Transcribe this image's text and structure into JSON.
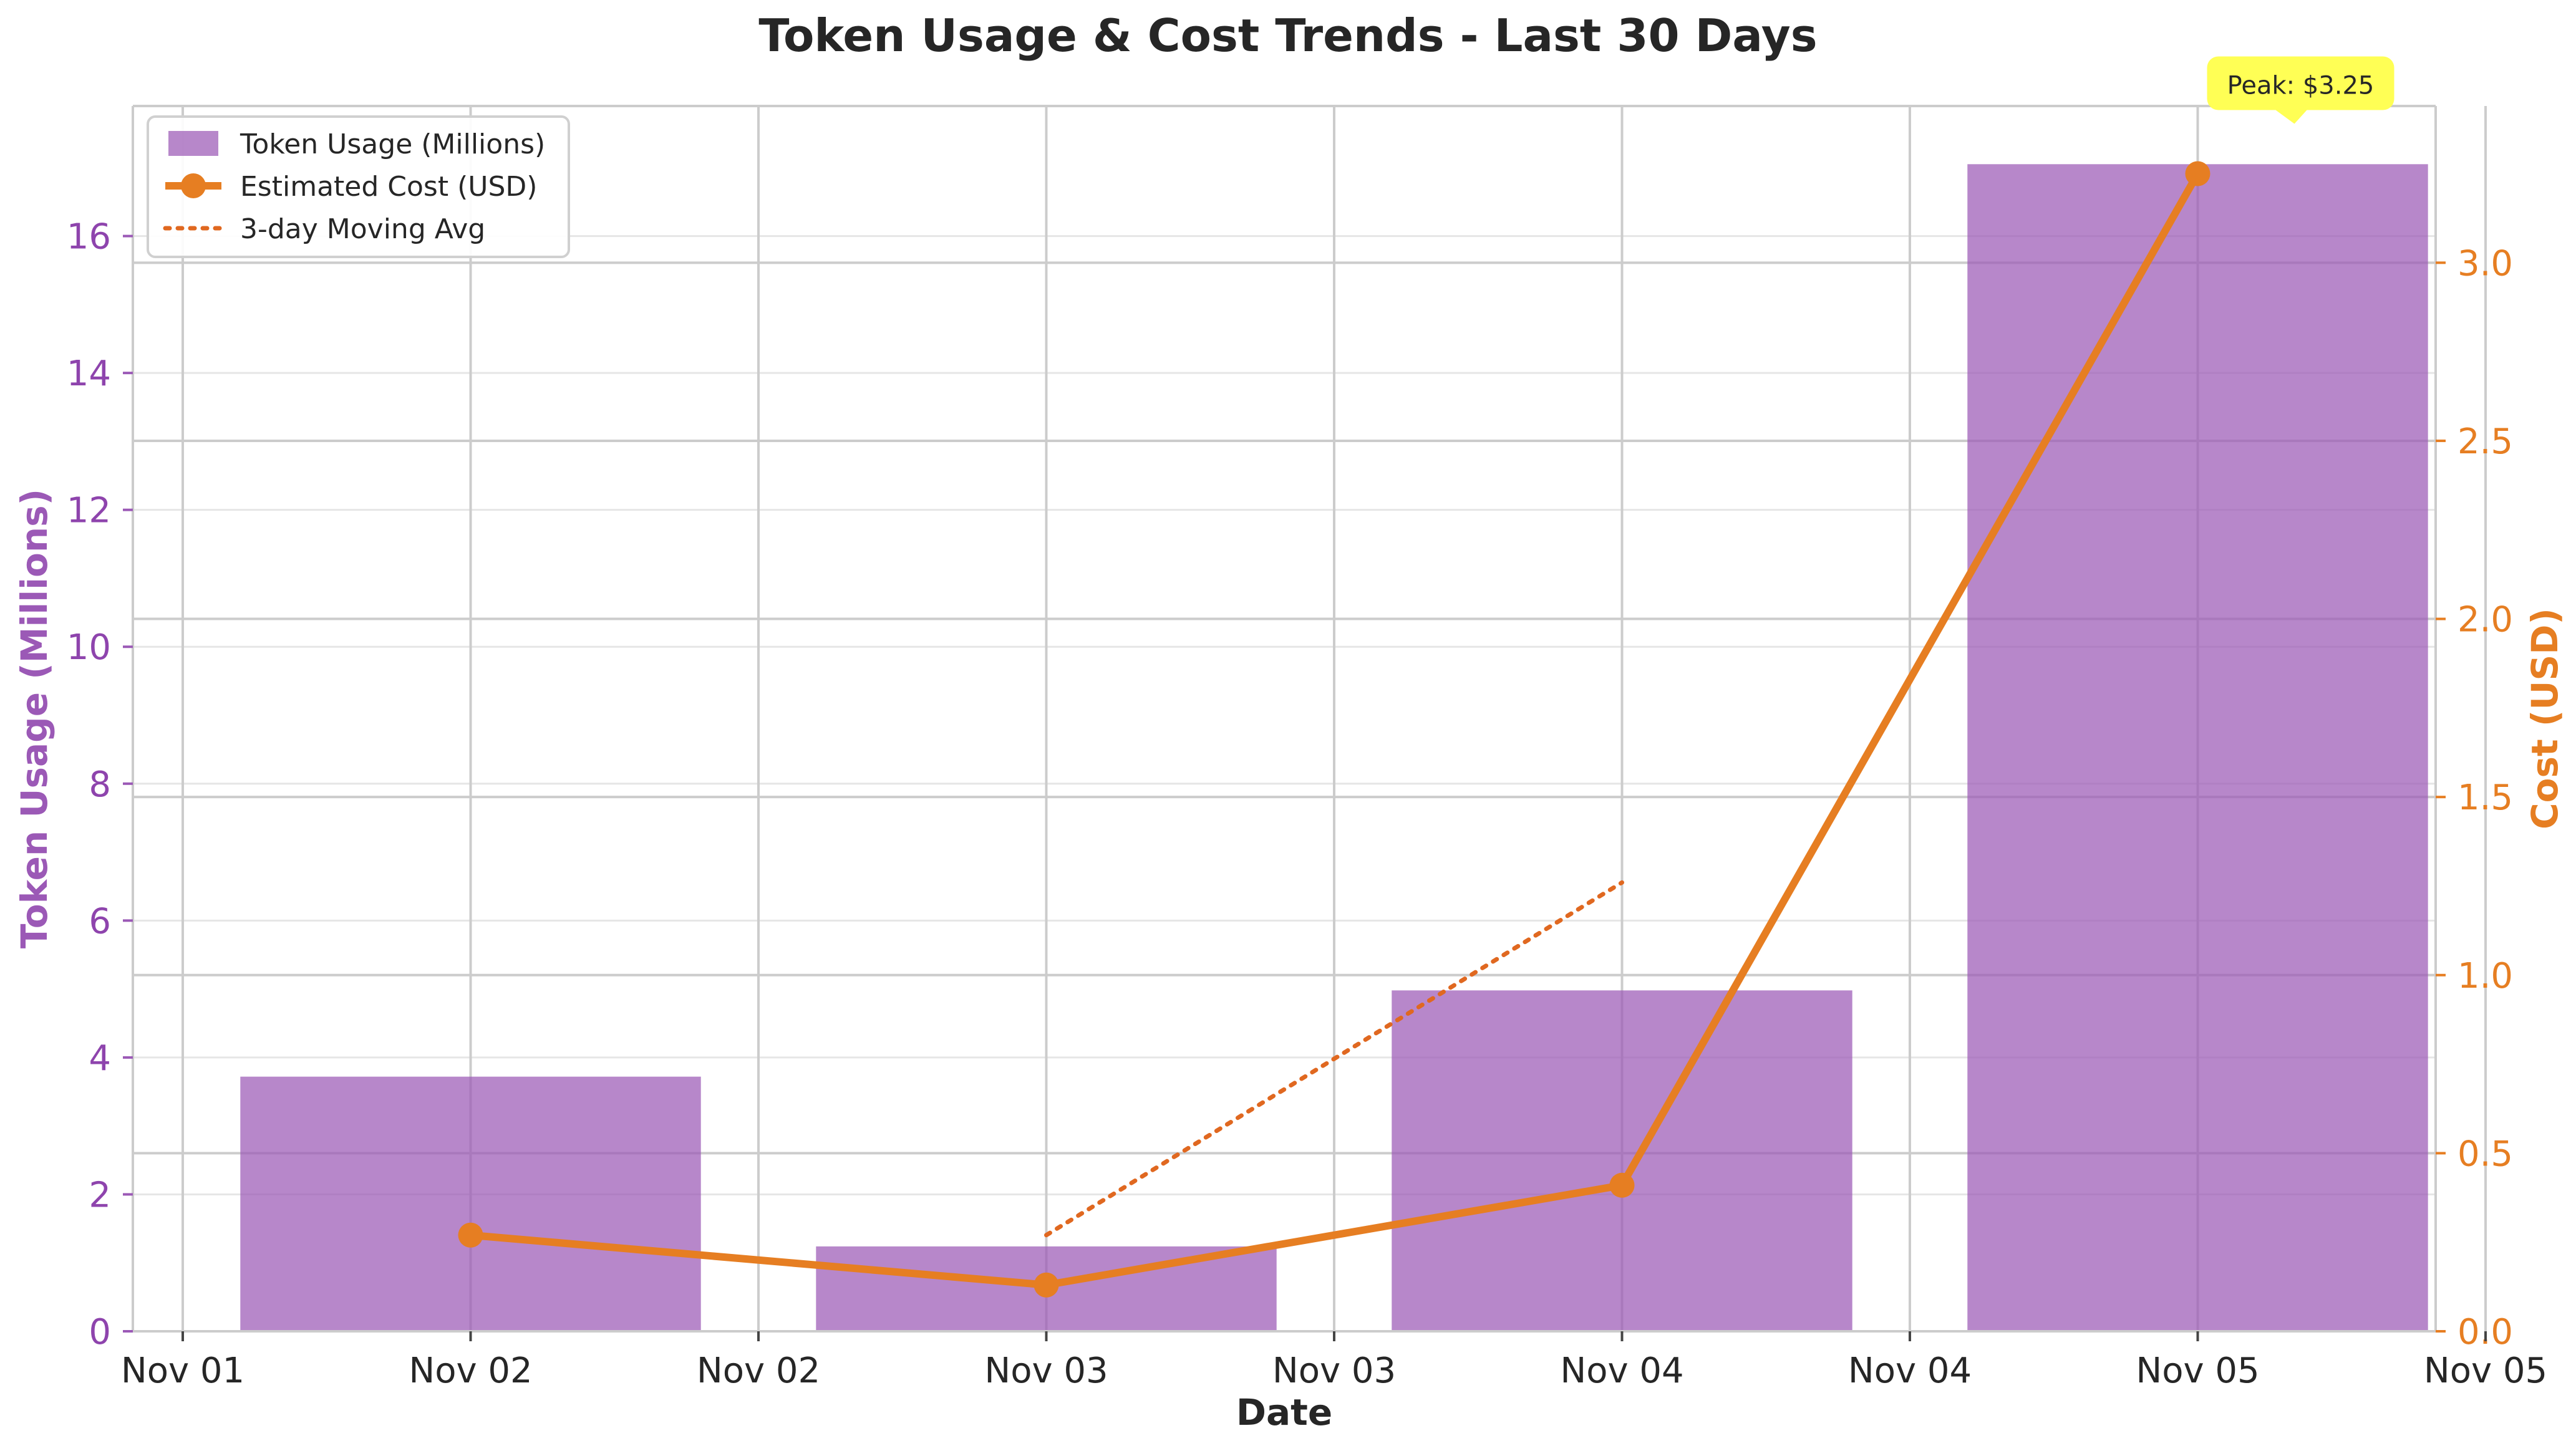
{
  "chart_data": {
    "type": "bar",
    "title": "Token Usage & Cost Trends - Last 30 Days",
    "xlabel": "Date",
    "ylabel": "Token Usage (Millions)",
    "y2label": "Cost (USD)",
    "x_tick_labels": [
      "Nov 01",
      "Nov 02",
      "Nov 02",
      "Nov 03",
      "Nov 03",
      "Nov 04",
      "Nov 04",
      "Nov 05",
      "Nov 05"
    ],
    "categories": [
      "Nov 02",
      "Nov 03",
      "Nov 04",
      "Nov 05"
    ],
    "ylim": [
      0,
      17.9
    ],
    "y_ticks": [
      0,
      2,
      4,
      6,
      8,
      10,
      12,
      14,
      16
    ],
    "y2lim": [
      0,
      3.44
    ],
    "y2_ticks": [
      0.0,
      0.5,
      1.0,
      1.5,
      2.0,
      2.5,
      3.0
    ],
    "y2_tick_labels": [
      "0.0",
      "0.5",
      "1.0",
      "1.5",
      "2.0",
      "2.5",
      "3.0"
    ],
    "grid": true,
    "legend_position": "top-left",
    "series": [
      {
        "name": "Token Usage (Millions)",
        "type": "bar",
        "axis": "left",
        "color": "#9b59b6",
        "values": [
          3.72,
          1.24,
          4.98,
          17.05
        ]
      },
      {
        "name": "Estimated Cost (USD)",
        "type": "line",
        "axis": "right",
        "color": "#e67e22",
        "values": [
          0.27,
          0.13,
          0.41,
          3.25
        ]
      },
      {
        "name": "3-day Moving Avg",
        "type": "line-dotted",
        "axis": "right",
        "color": "#e06820",
        "values": [
          null,
          0.27,
          1.26,
          null
        ]
      }
    ],
    "annotation": {
      "text": "Peak: $3.25",
      "category": "Nov 05",
      "value": 3.25,
      "color": "#ffff55"
    }
  }
}
